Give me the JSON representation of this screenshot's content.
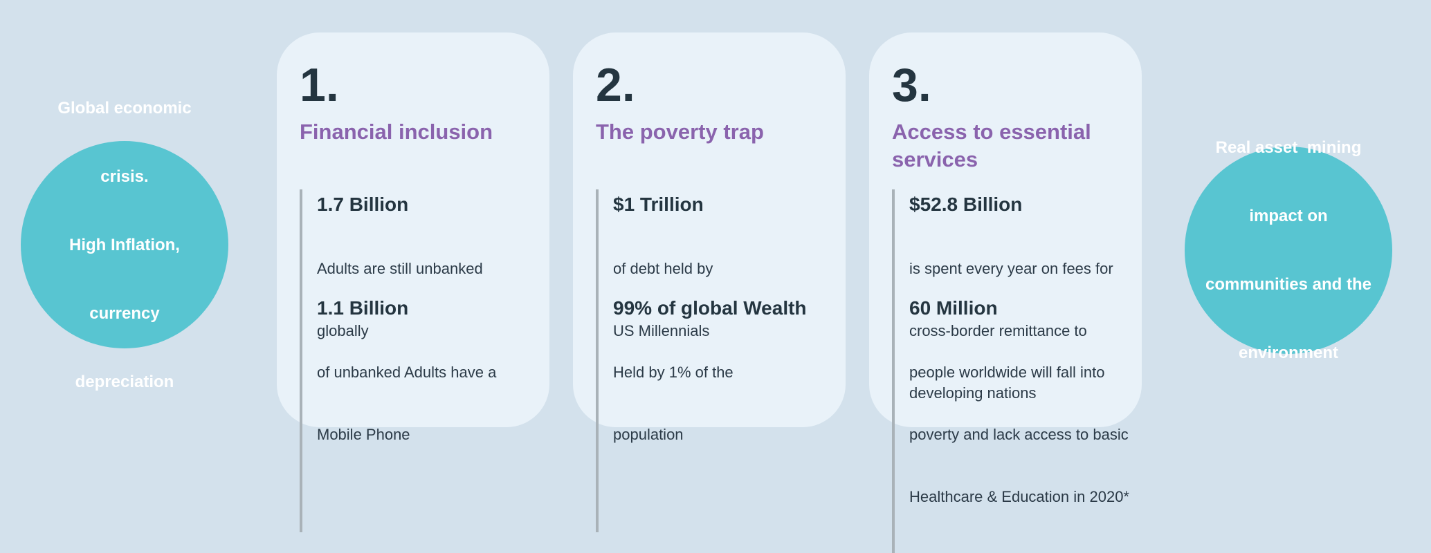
{
  "colors": {
    "background": "#d3e1ec",
    "card_background": "#e9f2f9",
    "circle_teal": "#58c5d1",
    "heading_purple": "#8a63ad",
    "text_dark": "#243540",
    "stat_bar_gray": "#a9b2b8",
    "circle_text_white": "#ffffff"
  },
  "left_circle": {
    "lines": [
      "Global economic",
      "crisis.",
      "High Inflation,",
      "currency",
      "depreciation"
    ]
  },
  "right_circle": {
    "lines": [
      "Real asset  mining",
      "impact on",
      "communities and the",
      "environment"
    ]
  },
  "cards": [
    {
      "number": "1.",
      "title_lines": [
        "Financial inclusion",
        ""
      ],
      "stats": [
        {
          "value": "1.7 Billion",
          "desc_lines": [
            "Adults are still unbanked",
            "globally",
            ""
          ]
        },
        {
          "value": "1.1 Billion",
          "desc_lines": [
            "of unbanked Adults have a",
            "Mobile Phone",
            ""
          ]
        }
      ]
    },
    {
      "number": "2.",
      "title_lines": [
        "The poverty trap",
        ""
      ],
      "stats": [
        {
          "value": "$1 Trillion",
          "desc_lines": [
            "of debt held by",
            "US Millennials",
            ""
          ]
        },
        {
          "value": "99% of global Wealth",
          "desc_lines": [
            "Held by 1% of the",
            "population",
            ""
          ]
        }
      ]
    },
    {
      "number": "3.",
      "title_lines": [
        "Access to essential",
        "services"
      ],
      "stats": [
        {
          "value": "$52.8 Billion",
          "desc_lines": [
            "is spent every year on fees for",
            "cross-border remittance to",
            "developing nations"
          ]
        },
        {
          "value": "60 Million",
          "desc_lines": [
            "people worldwide will fall into",
            "poverty and lack access to basic",
            "Healthcare & Education in 2020*"
          ]
        }
      ]
    }
  ]
}
